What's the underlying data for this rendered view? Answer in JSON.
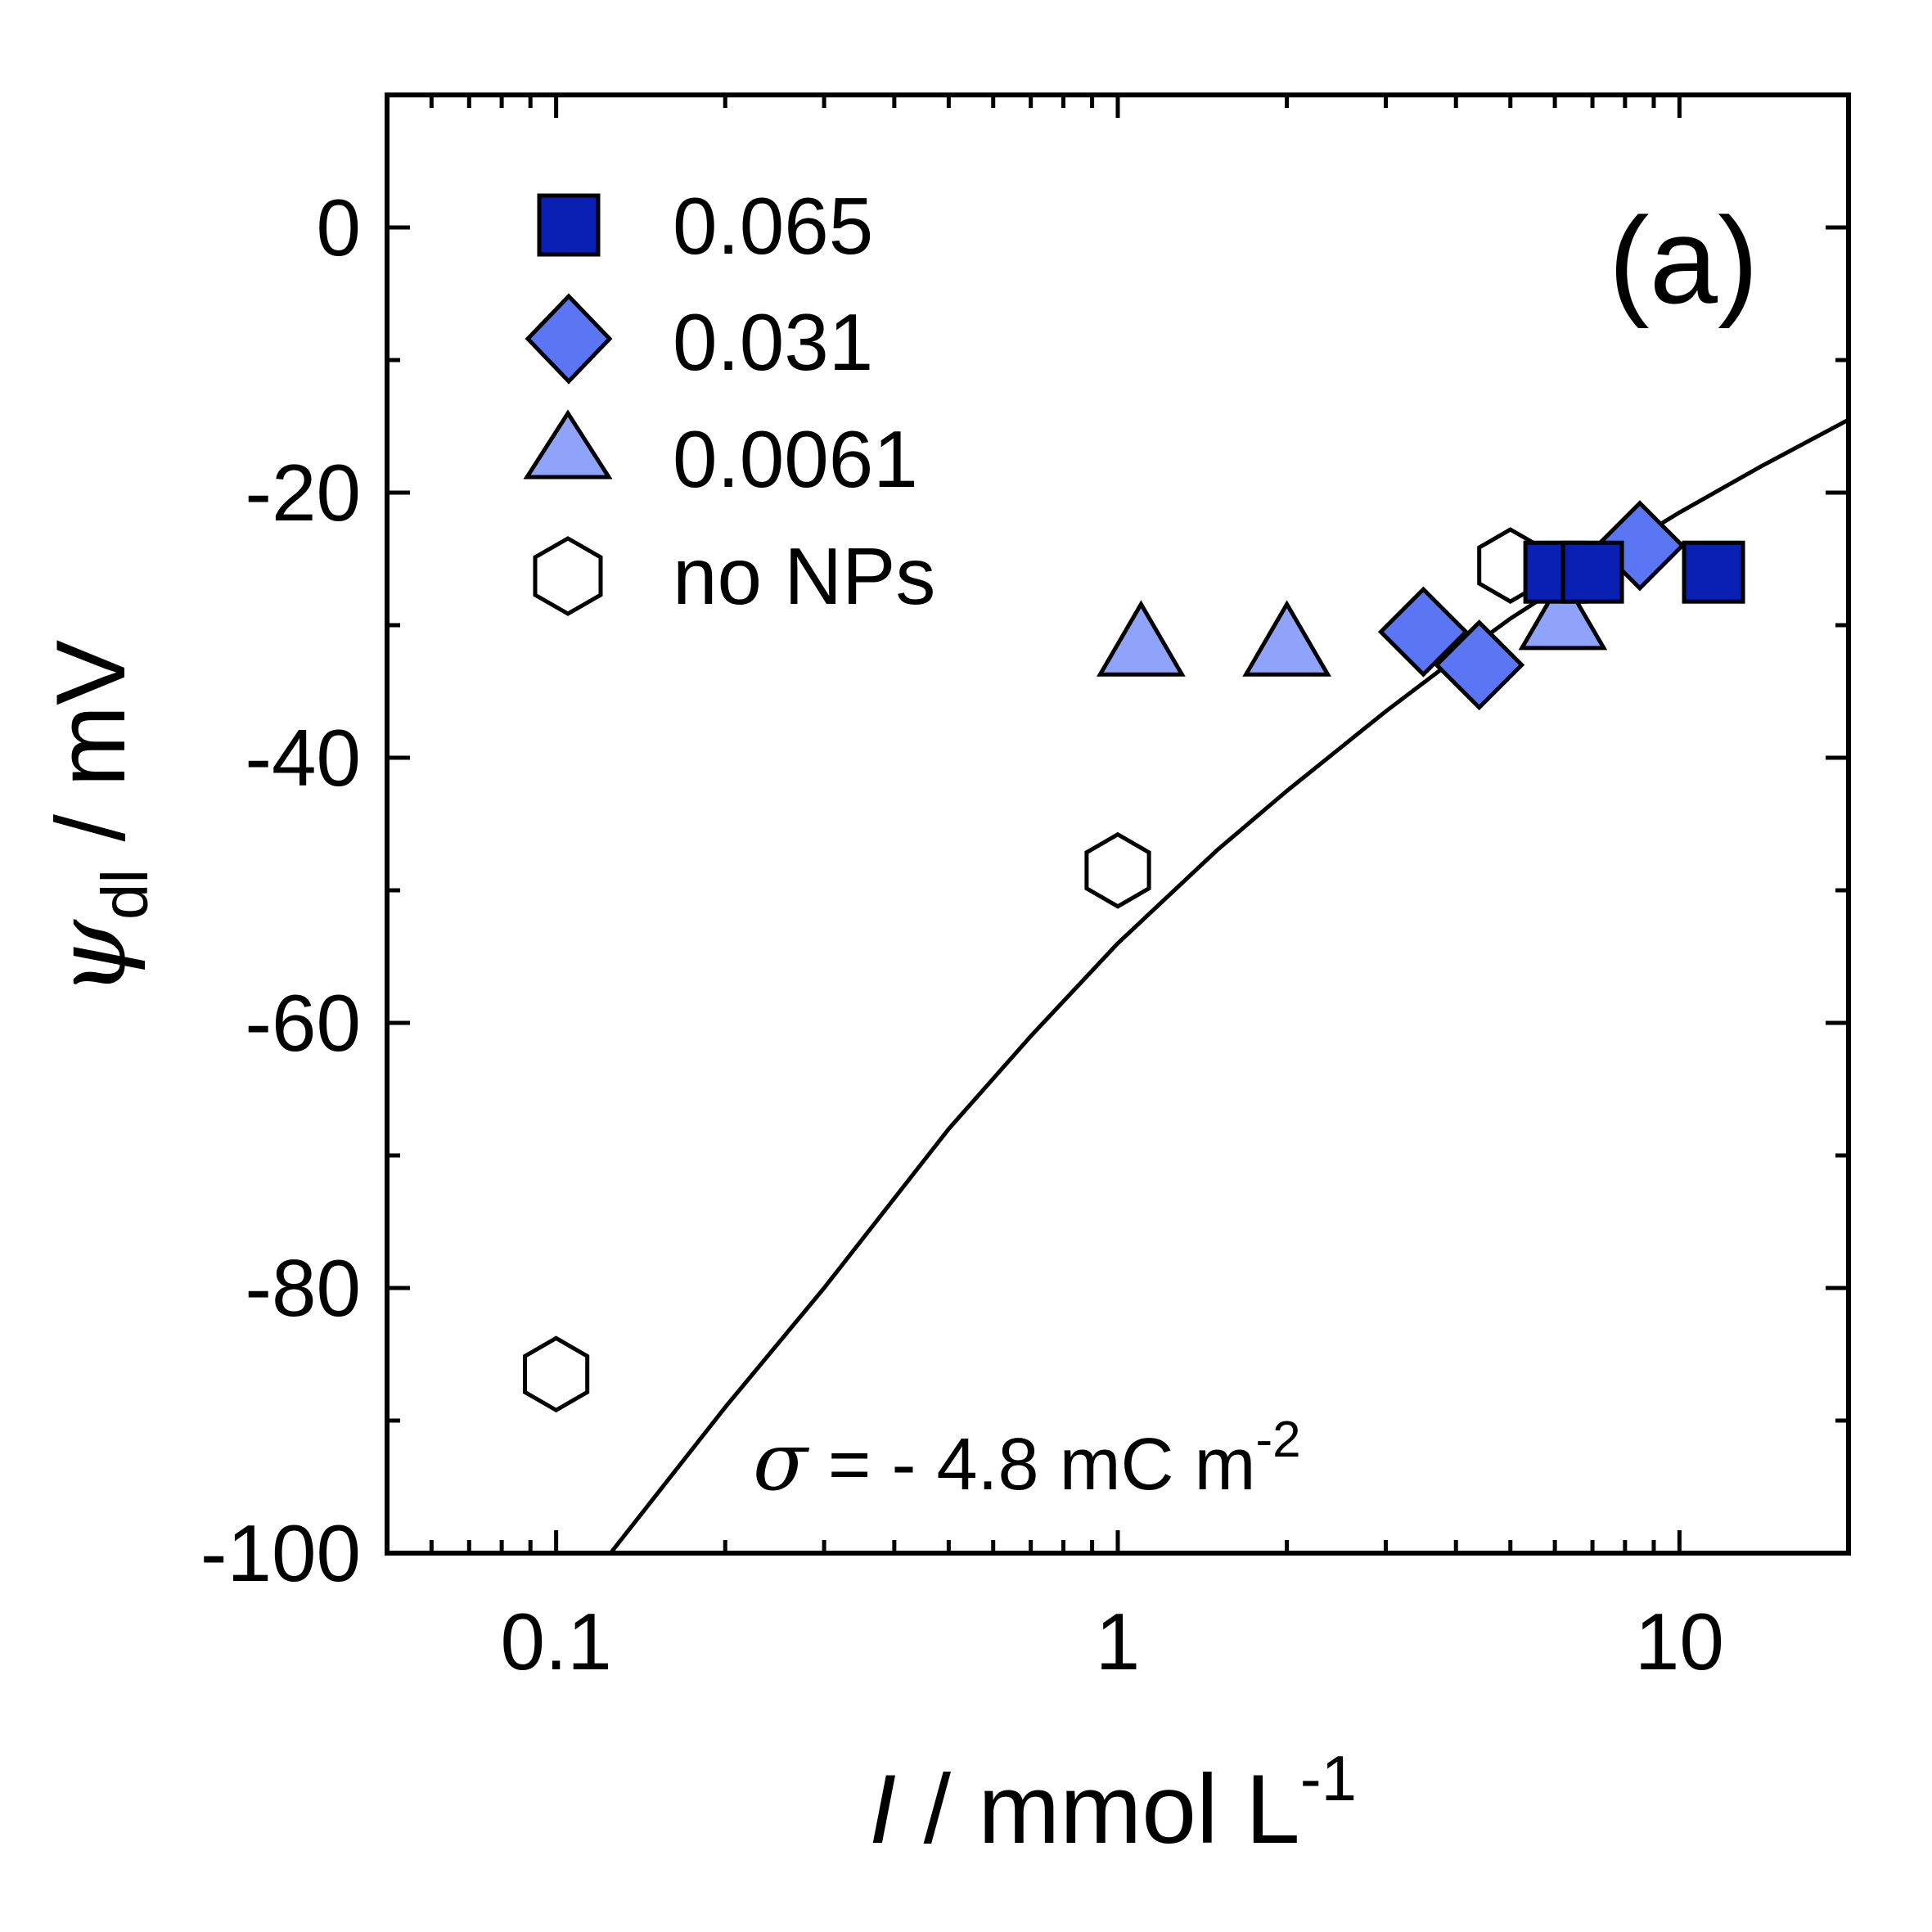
{
  "chart_data": {
    "type": "scatter",
    "panel_label": "(a)",
    "x_scale": "log",
    "xlim": [
      0.05,
      20
    ],
    "ylim": [
      -100,
      10
    ],
    "x_ticks": [
      0.1,
      1,
      10
    ],
    "x_tick_labels": [
      "0.1",
      "1",
      "10"
    ],
    "y_ticks": [
      0,
      -20,
      -40,
      -60,
      -80,
      -100
    ],
    "y_tick_labels": [
      "0",
      "-20",
      "-40",
      "-60",
      "-80",
      "-100"
    ],
    "xlabel": {
      "symbol": "I",
      "unit": " / mmol L",
      "unit_exp": "-1"
    },
    "ylabel": {
      "symbol": "ψ",
      "subscript": "dl",
      "unit": " / mV"
    },
    "annotation": {
      "symbol": "σ",
      "text": " = - 4.8 mC m",
      "exp": "-2"
    },
    "series": [
      {
        "name": "0.065",
        "marker": "square",
        "color": "#0a1fb4",
        "points": [
          {
            "x": 6.0,
            "y": -26
          },
          {
            "x": 7.0,
            "y": -26
          },
          {
            "x": 11.5,
            "y": -26
          }
        ]
      },
      {
        "name": "0.031",
        "marker": "diamond",
        "color": "#5a76f4",
        "points": [
          {
            "x": 3.5,
            "y": -30.5
          },
          {
            "x": 4.4,
            "y": -33
          },
          {
            "x": 8.5,
            "y": -24
          }
        ]
      },
      {
        "name": "0.0061",
        "marker": "triangle",
        "color": "#8fa3fb",
        "points": [
          {
            "x": 1.1,
            "y": -31.5
          },
          {
            "x": 2.0,
            "y": -31.5
          },
          {
            "x": 6.2,
            "y": -29.5
          }
        ]
      },
      {
        "name": "no NPs",
        "marker": "hexagon",
        "color": "#ffffff",
        "points": [
          {
            "x": 0.1,
            "y": -86.5
          },
          {
            "x": 1.0,
            "y": -48.5
          },
          {
            "x": 5.0,
            "y": -25.5
          }
        ]
      }
    ],
    "fit_curve": {
      "name": "sigma = -4.8 mC m-2",
      "points": [
        {
          "x": 0.125,
          "y": -100
        },
        {
          "x": 0.2,
          "y": -89
        },
        {
          "x": 0.3,
          "y": -80
        },
        {
          "x": 0.5,
          "y": -68
        },
        {
          "x": 0.7,
          "y": -61
        },
        {
          "x": 1.0,
          "y": -54
        },
        {
          "x": 1.5,
          "y": -47
        },
        {
          "x": 2.0,
          "y": -42.5
        },
        {
          "x": 3.0,
          "y": -36.5
        },
        {
          "x": 4.0,
          "y": -32.5
        },
        {
          "x": 5.0,
          "y": -29.5
        },
        {
          "x": 7.0,
          "y": -25.5
        },
        {
          "x": 10.0,
          "y": -21.5
        },
        {
          "x": 14.0,
          "y": -18
        },
        {
          "x": 20.0,
          "y": -14.5
        }
      ]
    }
  }
}
